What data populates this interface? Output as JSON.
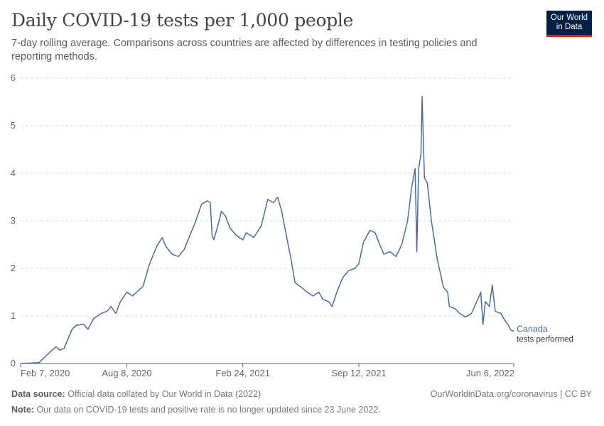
{
  "header": {
    "title": "Daily COVID-19 tests per 1,000 people",
    "subtitle": "7-day rolling average. Comparisons across countries are affected by differences in testing policies and reporting methods."
  },
  "logo": {
    "line1": "Our World",
    "line2": "in Data"
  },
  "footer": {
    "source_label": "Data source:",
    "source_text": "Official data collated by Our World in Data (2022)",
    "link_text": "OurWorldinData.org/coronavirus | CC BY",
    "note_label": "Note:",
    "note_text": "Our data on COVID-19 tests and positive rate is no longer updated since 23 June 2022."
  },
  "colors": {
    "series": "#4c6a9c",
    "grid": "#dddddd",
    "axis": "#666666",
    "text": "#5b5b5b",
    "logo_bg": "#002147",
    "logo_accent": "#ce261e"
  },
  "chart_data": {
    "type": "line",
    "title": "Daily COVID-19 tests per 1,000 people",
    "xlabel": "",
    "ylabel": "",
    "ylim": [
      0,
      6
    ],
    "xlim": [
      "2020-02-07",
      "2022-06-06"
    ],
    "y_ticks": [
      0,
      1,
      2,
      3,
      4,
      5,
      6
    ],
    "x_ticks": [
      "2020-02-07",
      "2020-08-08",
      "2021-02-24",
      "2021-09-12",
      "2022-06-06"
    ],
    "x_tick_labels": [
      "Feb 7, 2020",
      "Aug 8, 2020",
      "Feb 24, 2021",
      "Sep 12, 2021",
      "Jun 6, 2022"
    ],
    "grid": "horizontal dashed",
    "legend": "inline label at line end",
    "series": [
      {
        "name": "Canada",
        "label_suffix": "tests performed",
        "points": [
          [
            "2020-02-07",
            0.0
          ],
          [
            "2020-03-10",
            0.02
          ],
          [
            "2020-03-25",
            0.2
          ],
          [
            "2020-04-08",
            0.35
          ],
          [
            "2020-04-15",
            0.28
          ],
          [
            "2020-04-22",
            0.32
          ],
          [
            "2020-05-05",
            0.7
          ],
          [
            "2020-05-12",
            0.8
          ],
          [
            "2020-05-25",
            0.83
          ],
          [
            "2020-06-02",
            0.72
          ],
          [
            "2020-06-12",
            0.95
          ],
          [
            "2020-06-25",
            1.05
          ],
          [
            "2020-07-05",
            1.1
          ],
          [
            "2020-07-12",
            1.2
          ],
          [
            "2020-07-20",
            1.05
          ],
          [
            "2020-07-28",
            1.3
          ],
          [
            "2020-08-08",
            1.5
          ],
          [
            "2020-08-18",
            1.42
          ],
          [
            "2020-08-25",
            1.5
          ],
          [
            "2020-09-05",
            1.62
          ],
          [
            "2020-09-15",
            2.05
          ],
          [
            "2020-09-28",
            2.45
          ],
          [
            "2020-10-08",
            2.65
          ],
          [
            "2020-10-15",
            2.45
          ],
          [
            "2020-10-25",
            2.3
          ],
          [
            "2020-11-05",
            2.25
          ],
          [
            "2020-11-15",
            2.4
          ],
          [
            "2020-11-25",
            2.7
          ],
          [
            "2020-12-05",
            3.0
          ],
          [
            "2020-12-15",
            3.35
          ],
          [
            "2020-12-25",
            3.42
          ],
          [
            "2020-12-30",
            3.38
          ],
          [
            "2021-01-02",
            2.7
          ],
          [
            "2021-01-05",
            2.6
          ],
          [
            "2021-01-12",
            2.9
          ],
          [
            "2021-01-18",
            3.2
          ],
          [
            "2021-01-25",
            3.1
          ],
          [
            "2021-02-02",
            2.85
          ],
          [
            "2021-02-12",
            2.7
          ],
          [
            "2021-02-24",
            2.6
          ],
          [
            "2021-03-02",
            2.75
          ],
          [
            "2021-03-15",
            2.65
          ],
          [
            "2021-03-28",
            2.9
          ],
          [
            "2021-04-08",
            3.45
          ],
          [
            "2021-04-18",
            3.38
          ],
          [
            "2021-04-25",
            3.5
          ],
          [
            "2021-05-02",
            3.2
          ],
          [
            "2021-05-10",
            2.7
          ],
          [
            "2021-05-18",
            2.2
          ],
          [
            "2021-05-25",
            1.7
          ],
          [
            "2021-06-05",
            1.6
          ],
          [
            "2021-06-15",
            1.5
          ],
          [
            "2021-06-25",
            1.42
          ],
          [
            "2021-07-05",
            1.5
          ],
          [
            "2021-07-12",
            1.35
          ],
          [
            "2021-07-22",
            1.3
          ],
          [
            "2021-07-28",
            1.2
          ],
          [
            "2021-08-05",
            1.5
          ],
          [
            "2021-08-15",
            1.8
          ],
          [
            "2021-08-25",
            1.95
          ],
          [
            "2021-09-05",
            2.0
          ],
          [
            "2021-09-12",
            2.1
          ],
          [
            "2021-09-20",
            2.55
          ],
          [
            "2021-10-01",
            2.8
          ],
          [
            "2021-10-10",
            2.75
          ],
          [
            "2021-10-18",
            2.5
          ],
          [
            "2021-10-25",
            2.3
          ],
          [
            "2021-11-05",
            2.35
          ],
          [
            "2021-11-15",
            2.25
          ],
          [
            "2021-11-25",
            2.5
          ],
          [
            "2021-12-05",
            3.0
          ],
          [
            "2021-12-12",
            3.7
          ],
          [
            "2021-12-18",
            4.1
          ],
          [
            "2021-12-21",
            2.35
          ],
          [
            "2021-12-24",
            4.1
          ],
          [
            "2021-12-28",
            4.4
          ],
          [
            "2021-12-30",
            5.62
          ],
          [
            "2022-01-03",
            3.9
          ],
          [
            "2022-01-08",
            3.8
          ],
          [
            "2022-01-15",
            3.0
          ],
          [
            "2022-01-25",
            2.2
          ],
          [
            "2022-02-05",
            1.6
          ],
          [
            "2022-02-12",
            1.5
          ],
          [
            "2022-02-15",
            1.2
          ],
          [
            "2022-02-25",
            1.15
          ],
          [
            "2022-03-05",
            1.05
          ],
          [
            "2022-03-15",
            0.98
          ],
          [
            "2022-03-25",
            1.05
          ],
          [
            "2022-04-05",
            1.35
          ],
          [
            "2022-04-10",
            1.5
          ],
          [
            "2022-04-14",
            0.82
          ],
          [
            "2022-04-18",
            1.3
          ],
          [
            "2022-04-25",
            1.2
          ],
          [
            "2022-04-30",
            1.65
          ],
          [
            "2022-05-05",
            1.1
          ],
          [
            "2022-05-15",
            1.05
          ],
          [
            "2022-05-22",
            0.9
          ],
          [
            "2022-05-28",
            0.8
          ],
          [
            "2022-06-01",
            0.7
          ],
          [
            "2022-06-06",
            0.68
          ]
        ]
      }
    ]
  }
}
